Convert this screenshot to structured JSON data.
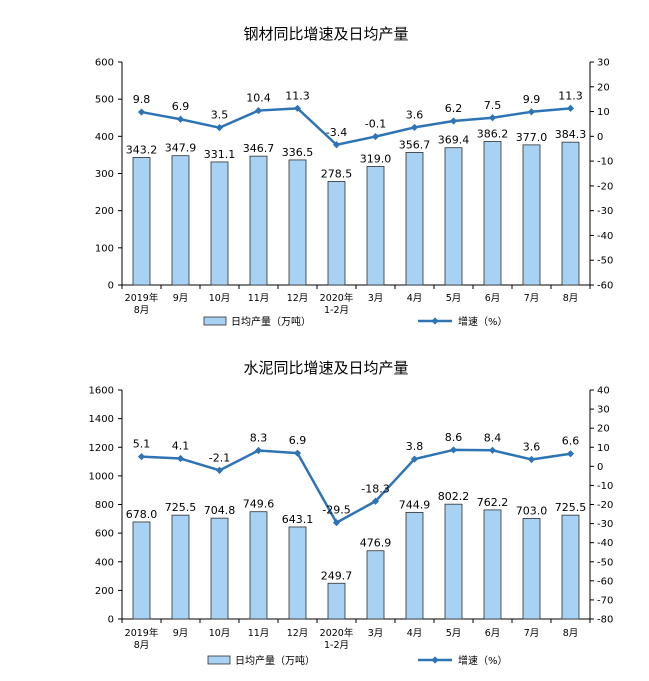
{
  "chart_data": [
    {
      "type": "bar",
      "title": "钢材同比增速及日均产量",
      "categories": [
        [
          "2019年",
          "8月"
        ],
        [
          "9月"
        ],
        [
          "10月"
        ],
        [
          "11月"
        ],
        [
          "12月"
        ],
        [
          "2020年",
          "1-2月"
        ],
        [
          "3月"
        ],
        [
          "4月"
        ],
        [
          "5月"
        ],
        [
          "6月"
        ],
        [
          "7月"
        ],
        [
          "8月"
        ]
      ],
      "series": [
        {
          "name": "日均产量（万吨）",
          "type": "bar",
          "axis": "left",
          "values": [
            343.2,
            347.9,
            331.1,
            346.7,
            336.5,
            278.5,
            319.0,
            356.7,
            369.4,
            386.2,
            377.0,
            384.3
          ],
          "labels": [
            "343.2",
            "347.9",
            "331.1",
            "346.7",
            "336.5",
            "278.5",
            "319.0",
            "356.7",
            "369.4",
            "386.2",
            "377.0",
            "384.3"
          ]
        },
        {
          "name": "增速（%）",
          "type": "line",
          "axis": "right",
          "values": [
            9.8,
            6.9,
            3.5,
            10.4,
            11.3,
            -3.4,
            -0.1,
            3.6,
            6.2,
            7.5,
            9.9,
            11.3
          ],
          "labels": [
            "9.8",
            "6.9",
            "3.5",
            "10.4",
            "11.3",
            "-3.4",
            "-0.1",
            "3.6",
            "6.2",
            "7.5",
            "9.9",
            "11.3"
          ]
        }
      ],
      "left_axis": {
        "min": 0,
        "max": 600,
        "ticks": [
          "0",
          "100",
          "200",
          "300",
          "400",
          "500",
          "600"
        ]
      },
      "right_axis": {
        "min": -60,
        "max": 30,
        "ticks": [
          "-60",
          "-50",
          "-40",
          "-30",
          "-20",
          "-10",
          "0",
          "10",
          "20",
          "30"
        ]
      },
      "legend_position": "bottom",
      "grid": false,
      "colors": {
        "bar_fill": "#a8d2f4",
        "bar_stroke": "#2f2f2f",
        "line": "#2e74b5"
      }
    },
    {
      "type": "bar",
      "title": "水泥同比增速及日均产量",
      "categories": [
        [
          "2019年",
          "8月"
        ],
        [
          "9月"
        ],
        [
          "10月"
        ],
        [
          "11月"
        ],
        [
          "12月"
        ],
        [
          "2020年",
          "1-2月"
        ],
        [
          "3月"
        ],
        [
          "4月"
        ],
        [
          "5月"
        ],
        [
          "6月"
        ],
        [
          "7月"
        ],
        [
          "8月"
        ]
      ],
      "series": [
        {
          "name": "日均产量（万吨）",
          "type": "bar",
          "axis": "left",
          "values": [
            678.0,
            725.5,
            704.8,
            749.6,
            643.1,
            249.7,
            476.9,
            744.9,
            802.2,
            762.2,
            703.0,
            725.5
          ],
          "labels": [
            "678.0",
            "725.5",
            "704.8",
            "749.6",
            "643.1",
            "249.7",
            "476.9",
            "744.9",
            "802.2",
            "762.2",
            "703.0",
            "725.5"
          ]
        },
        {
          "name": "增速（%）",
          "type": "line",
          "axis": "right",
          "values": [
            5.1,
            4.1,
            -2.1,
            8.3,
            6.9,
            -29.5,
            -18.3,
            3.8,
            8.6,
            8.4,
            3.6,
            6.6
          ],
          "labels": [
            "5.1",
            "4.1",
            "-2.1",
            "8.3",
            "6.9",
            "-29.5",
            "-18.3",
            "3.8",
            "8.6",
            "8.4",
            "3.6",
            "6.6"
          ]
        }
      ],
      "left_axis": {
        "min": 0,
        "max": 1600,
        "ticks": [
          "0",
          "200",
          "400",
          "600",
          "800",
          "1000",
          "1200",
          "1400",
          "1600"
        ]
      },
      "right_axis": {
        "min": -80,
        "max": 40,
        "ticks": [
          "-80",
          "-70",
          "-60",
          "-50",
          "-40",
          "-30",
          "-20",
          "-10",
          "0",
          "10",
          "20",
          "30",
          "40"
        ]
      },
      "legend_position": "bottom",
      "grid": false,
      "colors": {
        "bar_fill": "#a8d2f4",
        "bar_stroke": "#2f2f2f",
        "line": "#2e74b5"
      }
    }
  ]
}
